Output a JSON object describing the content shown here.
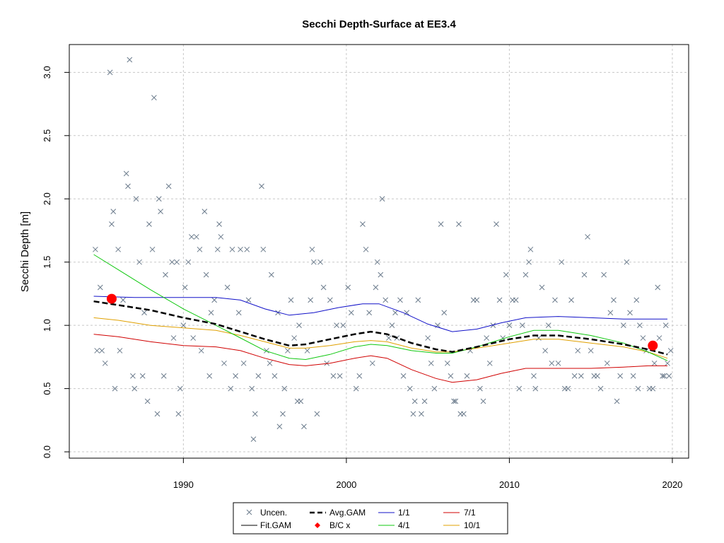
{
  "chart_data": {
    "type": "scatter",
    "title": "Secchi Depth-Surface at EE3.4",
    "xlabel": "",
    "ylabel": "Secchi Depth [m]",
    "xlim": [
      1983,
      2021
    ],
    "ylim": [
      -0.05,
      3.22
    ],
    "x_ticks": [
      1990,
      2000,
      2010,
      2020
    ],
    "y_ticks": [
      0.0,
      0.5,
      1.0,
      1.5,
      2.0,
      2.5,
      3.0
    ],
    "grid": true,
    "legend_position": "bottom-center",
    "legend": {
      "uncen": "Uncen.",
      "fit": "Fit.GAM",
      "avg": "Avg.GAM",
      "bc": "B/C x",
      "q11": "1/1",
      "q41": "4/1",
      "q71": "7/1",
      "q101": "10/1"
    },
    "colors": {
      "uncen": "#6b7b8c",
      "fit": "#000000",
      "avg": "#000000",
      "bc": "#ff0000",
      "q11": "#1010c8",
      "q41": "#10c810",
      "q71": "#d00000",
      "q101": "#e0a000",
      "grid": "#c8c8c8"
    },
    "fit_amplitude": 0.33,
    "uncen_points": [
      [
        1984.6,
        1.6
      ],
      [
        1984.7,
        0.8
      ],
      [
        1984.9,
        1.3
      ],
      [
        1985.0,
        0.8
      ],
      [
        1985.2,
        0.7
      ],
      [
        1985.5,
        3.0
      ],
      [
        1985.6,
        1.8
      ],
      [
        1985.7,
        1.9
      ],
      [
        1985.8,
        0.5
      ],
      [
        1986.0,
        1.6
      ],
      [
        1986.1,
        0.8
      ],
      [
        1986.3,
        1.2
      ],
      [
        1986.5,
        2.2
      ],
      [
        1986.6,
        2.1
      ],
      [
        1986.7,
        3.1
      ],
      [
        1986.9,
        0.6
      ],
      [
        1987.0,
        0.5
      ],
      [
        1987.1,
        2.0
      ],
      [
        1987.3,
        1.5
      ],
      [
        1987.5,
        0.6
      ],
      [
        1987.6,
        1.1
      ],
      [
        1987.8,
        0.4
      ],
      [
        1987.9,
        1.8
      ],
      [
        1988.1,
        1.6
      ],
      [
        1988.2,
        2.8
      ],
      [
        1988.4,
        0.3
      ],
      [
        1988.5,
        2.0
      ],
      [
        1988.6,
        1.9
      ],
      [
        1988.8,
        0.6
      ],
      [
        1988.9,
        1.4
      ],
      [
        1989.1,
        2.1
      ],
      [
        1989.3,
        1.5
      ],
      [
        1989.4,
        0.9
      ],
      [
        1989.6,
        1.5
      ],
      [
        1989.7,
        0.3
      ],
      [
        1989.8,
        0.5
      ],
      [
        1990.0,
        1.0
      ],
      [
        1990.1,
        1.3
      ],
      [
        1990.3,
        1.5
      ],
      [
        1990.5,
        1.7
      ],
      [
        1990.6,
        0.9
      ],
      [
        1990.8,
        1.7
      ],
      [
        1991.0,
        1.6
      ],
      [
        1991.1,
        0.8
      ],
      [
        1991.3,
        1.9
      ],
      [
        1991.4,
        1.4
      ],
      [
        1991.6,
        0.6
      ],
      [
        1991.7,
        1.1
      ],
      [
        1991.9,
        1.2
      ],
      [
        1992.1,
        1.6
      ],
      [
        1992.2,
        1.8
      ],
      [
        1992.3,
        1.7
      ],
      [
        1992.5,
        0.7
      ],
      [
        1992.7,
        1.3
      ],
      [
        1992.9,
        0.5
      ],
      [
        1993.0,
        1.6
      ],
      [
        1993.2,
        0.6
      ],
      [
        1993.4,
        1.1
      ],
      [
        1993.5,
        1.6
      ],
      [
        1993.7,
        0.7
      ],
      [
        1993.9,
        1.6
      ],
      [
        1994.0,
        1.2
      ],
      [
        1994.2,
        0.5
      ],
      [
        1994.3,
        0.1
      ],
      [
        1994.4,
        0.3
      ],
      [
        1994.6,
        0.6
      ],
      [
        1994.8,
        2.1
      ],
      [
        1994.9,
        1.6
      ],
      [
        1995.1,
        0.8
      ],
      [
        1995.3,
        0.7
      ],
      [
        1995.4,
        1.4
      ],
      [
        1995.6,
        0.6
      ],
      [
        1995.8,
        1.1
      ],
      [
        1995.9,
        0.2
      ],
      [
        1996.1,
        0.3
      ],
      [
        1996.2,
        0.5
      ],
      [
        1996.4,
        0.8
      ],
      [
        1996.6,
        1.2
      ],
      [
        1996.8,
        0.9
      ],
      [
        1997.0,
        0.4
      ],
      [
        1997.1,
        1.0
      ],
      [
        1997.2,
        0.4
      ],
      [
        1997.4,
        0.2
      ],
      [
        1997.6,
        0.8
      ],
      [
        1997.8,
        1.2
      ],
      [
        1997.9,
        1.6
      ],
      [
        1998.0,
        1.5
      ],
      [
        1998.2,
        0.3
      ],
      [
        1998.4,
        1.5
      ],
      [
        1998.6,
        1.3
      ],
      [
        1998.8,
        0.7
      ],
      [
        1999.0,
        1.2
      ],
      [
        1999.2,
        0.6
      ],
      [
        1999.4,
        1.0
      ],
      [
        1999.6,
        0.6
      ],
      [
        1999.8,
        1.0
      ],
      [
        2000.1,
        1.3
      ],
      [
        2000.3,
        1.1
      ],
      [
        2000.6,
        0.5
      ],
      [
        2000.8,
        0.6
      ],
      [
        2001.0,
        1.8
      ],
      [
        2001.2,
        1.6
      ],
      [
        2001.4,
        1.1
      ],
      [
        2001.6,
        0.7
      ],
      [
        2001.8,
        1.3
      ],
      [
        2001.9,
        1.5
      ],
      [
        2002.1,
        1.4
      ],
      [
        2002.2,
        2.0
      ],
      [
        2002.4,
        1.2
      ],
      [
        2002.6,
        0.9
      ],
      [
        2002.8,
        1.0
      ],
      [
        2003.0,
        1.1
      ],
      [
        2003.1,
        0.9
      ],
      [
        2003.3,
        1.2
      ],
      [
        2003.5,
        0.6
      ],
      [
        2003.7,
        1.1
      ],
      [
        2003.9,
        0.5
      ],
      [
        2004.1,
        0.3
      ],
      [
        2004.2,
        0.4
      ],
      [
        2004.4,
        1.2
      ],
      [
        2004.6,
        0.3
      ],
      [
        2004.8,
        0.4
      ],
      [
        2005.0,
        0.9
      ],
      [
        2005.2,
        0.7
      ],
      [
        2005.4,
        0.5
      ],
      [
        2005.6,
        1.0
      ],
      [
        2005.8,
        1.8
      ],
      [
        2006.0,
        1.1
      ],
      [
        2006.2,
        0.7
      ],
      [
        2006.4,
        0.6
      ],
      [
        2006.6,
        0.4
      ],
      [
        2006.7,
        0.4
      ],
      [
        2006.9,
        1.8
      ],
      [
        2007.0,
        0.3
      ],
      [
        2007.2,
        0.3
      ],
      [
        2007.4,
        0.6
      ],
      [
        2007.6,
        0.8
      ],
      [
        2007.8,
        1.2
      ],
      [
        2008.0,
        1.2
      ],
      [
        2008.2,
        0.5
      ],
      [
        2008.4,
        0.4
      ],
      [
        2008.6,
        0.9
      ],
      [
        2008.8,
        0.7
      ],
      [
        2009.0,
        1.0
      ],
      [
        2009.2,
        1.8
      ],
      [
        2009.4,
        1.2
      ],
      [
        2009.6,
        0.9
      ],
      [
        2009.8,
        1.4
      ],
      [
        2010.0,
        1.0
      ],
      [
        2010.2,
        1.2
      ],
      [
        2010.4,
        1.2
      ],
      [
        2010.6,
        0.5
      ],
      [
        2010.8,
        1.0
      ],
      [
        2011.0,
        1.4
      ],
      [
        2011.2,
        1.5
      ],
      [
        2011.3,
        1.6
      ],
      [
        2011.5,
        0.6
      ],
      [
        2011.6,
        0.5
      ],
      [
        2011.8,
        0.9
      ],
      [
        2012.0,
        1.3
      ],
      [
        2012.2,
        0.8
      ],
      [
        2012.4,
        1.0
      ],
      [
        2012.6,
        0.7
      ],
      [
        2012.8,
        1.2
      ],
      [
        2013.0,
        0.7
      ],
      [
        2013.2,
        1.5
      ],
      [
        2013.4,
        0.5
      ],
      [
        2013.6,
        0.5
      ],
      [
        2013.8,
        1.2
      ],
      [
        2014.0,
        0.6
      ],
      [
        2014.2,
        0.8
      ],
      [
        2014.4,
        0.6
      ],
      [
        2014.6,
        1.4
      ],
      [
        2014.8,
        1.7
      ],
      [
        2015.0,
        0.8
      ],
      [
        2015.2,
        0.6
      ],
      [
        2015.4,
        0.6
      ],
      [
        2015.6,
        0.5
      ],
      [
        2015.8,
        1.4
      ],
      [
        2016.0,
        0.7
      ],
      [
        2016.2,
        1.1
      ],
      [
        2016.4,
        1.2
      ],
      [
        2016.6,
        0.4
      ],
      [
        2016.8,
        0.6
      ],
      [
        2017.0,
        1.0
      ],
      [
        2017.2,
        1.5
      ],
      [
        2017.4,
        1.1
      ],
      [
        2017.6,
        0.6
      ],
      [
        2017.8,
        1.2
      ],
      [
        2017.9,
        0.5
      ],
      [
        2018.0,
        1.0
      ],
      [
        2018.2,
        0.9
      ],
      [
        2018.4,
        0.8
      ],
      [
        2018.6,
        0.5
      ],
      [
        2018.8,
        0.5
      ],
      [
        2018.9,
        0.7
      ],
      [
        2019.1,
        1.3
      ],
      [
        2019.2,
        0.9
      ],
      [
        2019.4,
        0.6
      ],
      [
        2019.5,
        0.6
      ],
      [
        2019.6,
        1.0
      ],
      [
        2019.7,
        0.7
      ],
      [
        2019.8,
        0.6
      ],
      [
        2019.9,
        0.8
      ]
    ],
    "avg_gam": [
      [
        1984.5,
        1.19
      ],
      [
        1986,
        1.16
      ],
      [
        1988,
        1.12
      ],
      [
        1990,
        1.06
      ],
      [
        1992,
        1.01
      ],
      [
        1993.5,
        0.95
      ],
      [
        1995,
        0.89
      ],
      [
        1996.5,
        0.84
      ],
      [
        1997.5,
        0.85
      ],
      [
        1999,
        0.89
      ],
      [
        2000.5,
        0.93
      ],
      [
        2001.5,
        0.95
      ],
      [
        2002.5,
        0.93
      ],
      [
        2004,
        0.86
      ],
      [
        2005.5,
        0.81
      ],
      [
        2006.5,
        0.79
      ],
      [
        2008,
        0.83
      ],
      [
        2010,
        0.89
      ],
      [
        2011.5,
        0.92
      ],
      [
        2013,
        0.92
      ],
      [
        2015,
        0.89
      ],
      [
        2017,
        0.85
      ],
      [
        2018.5,
        0.81
      ],
      [
        2019.7,
        0.77
      ]
    ],
    "q_1_1": [
      [
        1984.5,
        1.23
      ],
      [
        1987,
        1.22
      ],
      [
        1990,
        1.22
      ],
      [
        1992,
        1.22
      ],
      [
        1993.5,
        1.2
      ],
      [
        1995,
        1.13
      ],
      [
        1996.5,
        1.08
      ],
      [
        1998,
        1.1
      ],
      [
        1999.5,
        1.14
      ],
      [
        2001,
        1.17
      ],
      [
        2002,
        1.17
      ],
      [
        2003.5,
        1.1
      ],
      [
        2005,
        1.01
      ],
      [
        2006.5,
        0.95
      ],
      [
        2008,
        0.97
      ],
      [
        2009.5,
        1.02
      ],
      [
        2011,
        1.06
      ],
      [
        2013,
        1.07
      ],
      [
        2015,
        1.06
      ],
      [
        2017,
        1.05
      ],
      [
        2019.7,
        1.05
      ]
    ],
    "q_4_1": [
      [
        1984.5,
        1.56
      ],
      [
        1986,
        1.44
      ],
      [
        1988,
        1.28
      ],
      [
        1990,
        1.13
      ],
      [
        1992,
        1.0
      ],
      [
        1993.5,
        0.9
      ],
      [
        1995,
        0.8
      ],
      [
        1996.5,
        0.74
      ],
      [
        1997.5,
        0.73
      ],
      [
        1999,
        0.77
      ],
      [
        2000.5,
        0.83
      ],
      [
        2001.5,
        0.85
      ],
      [
        2002.5,
        0.84
      ],
      [
        2004,
        0.8
      ],
      [
        2005.5,
        0.78
      ],
      [
        2006.5,
        0.78
      ],
      [
        2008,
        0.83
      ],
      [
        2010,
        0.91
      ],
      [
        2011.5,
        0.96
      ],
      [
        2013,
        0.96
      ],
      [
        2015,
        0.92
      ],
      [
        2017,
        0.86
      ],
      [
        2018.5,
        0.79
      ],
      [
        2019.7,
        0.72
      ]
    ],
    "q_7_1": [
      [
        1984.5,
        0.93
      ],
      [
        1986,
        0.91
      ],
      [
        1988,
        0.87
      ],
      [
        1990,
        0.84
      ],
      [
        1992,
        0.83
      ],
      [
        1993.5,
        0.8
      ],
      [
        1995,
        0.74
      ],
      [
        1996.5,
        0.69
      ],
      [
        1997.5,
        0.68
      ],
      [
        1999,
        0.7
      ],
      [
        2000.5,
        0.74
      ],
      [
        2001.5,
        0.76
      ],
      [
        2002.5,
        0.74
      ],
      [
        2004,
        0.65
      ],
      [
        2005.5,
        0.58
      ],
      [
        2006.5,
        0.55
      ],
      [
        2008,
        0.57
      ],
      [
        2009.5,
        0.62
      ],
      [
        2011,
        0.66
      ],
      [
        2013,
        0.66
      ],
      [
        2015,
        0.66
      ],
      [
        2017,
        0.67
      ],
      [
        2018.5,
        0.68
      ],
      [
        2019.7,
        0.68
      ]
    ],
    "q_10_1": [
      [
        1984.5,
        1.06
      ],
      [
        1986,
        1.04
      ],
      [
        1988,
        1.0
      ],
      [
        1990,
        0.98
      ],
      [
        1992,
        0.96
      ],
      [
        1993.5,
        0.92
      ],
      [
        1995,
        0.87
      ],
      [
        1996.5,
        0.82
      ],
      [
        1997.5,
        0.82
      ],
      [
        1999,
        0.84
      ],
      [
        2000.5,
        0.87
      ],
      [
        2001.5,
        0.88
      ],
      [
        2002.5,
        0.87
      ],
      [
        2004,
        0.82
      ],
      [
        2005.5,
        0.79
      ],
      [
        2006.5,
        0.79
      ],
      [
        2008,
        0.82
      ],
      [
        2010,
        0.86
      ],
      [
        2011.5,
        0.89
      ],
      [
        2013,
        0.89
      ],
      [
        2015,
        0.86
      ],
      [
        2017,
        0.83
      ],
      [
        2018.5,
        0.79
      ],
      [
        2019.7,
        0.74
      ]
    ],
    "bc_points": [
      [
        1985.6,
        1.21
      ],
      [
        2018.8,
        0.84
      ]
    ]
  }
}
